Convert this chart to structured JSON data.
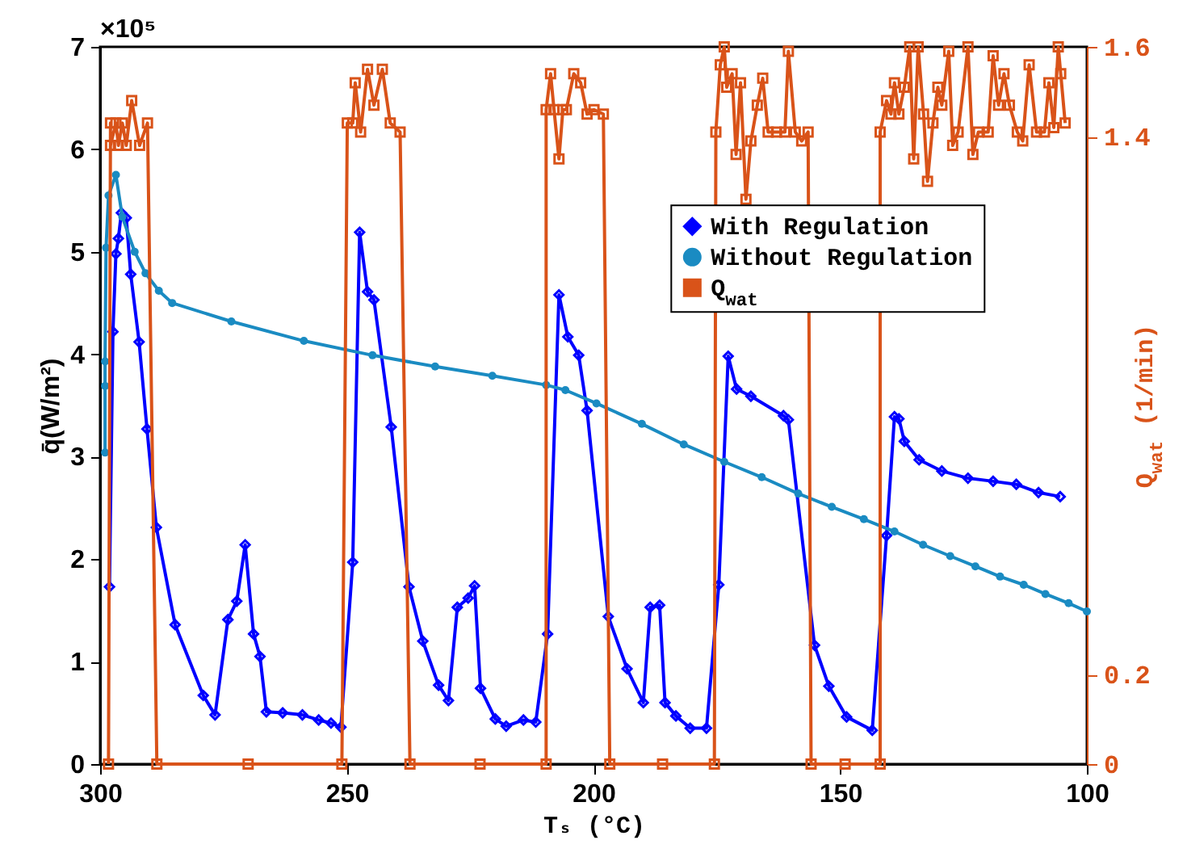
{
  "chart_data": {
    "type": "line",
    "xlabel": "Tₛ (°C)",
    "ylabel": "q̄(W/m²)",
    "y2label": "Q$_{wat}$ (1/min)",
    "annotations": [
      "×10⁵"
    ],
    "xlim": [
      300,
      100
    ],
    "xticks": [
      300,
      250,
      200,
      150,
      100
    ],
    "ylim": [
      0,
      7
    ],
    "yticks": [
      0,
      1,
      2,
      3,
      4,
      5,
      6,
      7
    ],
    "y2lim": [
      0,
      1.6
    ],
    "y2ticks": [
      0,
      0.2,
      1.4,
      1.6
    ],
    "legend": "top right",
    "series": [
      {
        "name": "With Regulation",
        "color": "#0000ff",
        "marker": "diamond",
        "x": [
          298.1,
          297.4,
          296.8,
          296.3,
          295.7,
          294.7,
          293.8,
          292.1,
          290.5,
          288.6,
          284.8,
          279.1,
          276.7,
          274.1,
          272.3,
          270.6,
          268.9,
          267.6,
          266.3,
          263.0,
          259.0,
          255.7,
          253.2,
          251.2,
          248.8,
          247.4,
          245.8,
          244.5,
          241.0,
          237.4,
          234.6,
          231.4,
          229.4,
          227.6,
          225.4,
          224.1,
          222.9,
          219.9,
          217.7,
          214.2,
          211.7,
          209.3,
          207.0,
          205.2,
          203.0,
          201.3,
          197.0,
          193.2,
          189.9,
          188.5,
          186.6,
          185.5,
          183.3,
          180.4,
          177.1,
          174.6,
          172.7,
          171.0,
          168.1,
          161.5,
          160.5,
          155.2,
          152.3,
          148.7,
          143.5,
          140.6,
          139.0,
          138.1,
          137.0,
          134.0,
          129.4,
          124.1,
          119.0,
          114.3,
          109.8,
          105.4
        ],
        "values": [
          1.73,
          4.22,
          4.98,
          5.13,
          5.38,
          5.33,
          4.78,
          4.12,
          3.27,
          2.31,
          1.36,
          0.67,
          0.48,
          1.41,
          1.59,
          2.14,
          1.27,
          1.05,
          0.51,
          0.5,
          0.48,
          0.43,
          0.4,
          0.36,
          1.97,
          5.19,
          4.61,
          4.53,
          3.29,
          1.73,
          1.2,
          0.77,
          0.62,
          1.53,
          1.62,
          1.74,
          0.74,
          0.44,
          0.37,
          0.43,
          0.41,
          1.27,
          4.58,
          4.17,
          3.99,
          3.45,
          1.44,
          0.93,
          0.6,
          1.53,
          1.55,
          0.6,
          0.47,
          0.35,
          0.35,
          1.75,
          3.98,
          3.66,
          3.59,
          3.4,
          3.36,
          1.16,
          0.76,
          0.46,
          0.33,
          2.23,
          3.39,
          3.37,
          3.15,
          2.97,
          2.86,
          2.79,
          2.76,
          2.73,
          2.65,
          2.61
        ]
      },
      {
        "name": "Without Regulation",
        "color": "#1a8bc2",
        "marker": "circle",
        "x": [
          299.0,
          299.0,
          299.0,
          298.8,
          298.3,
          296.8,
          295.5,
          293.0,
          290.8,
          288.1,
          285.4,
          273.4,
          258.7,
          244.8,
          232.1,
          220.5,
          209.6,
          205.7,
          199.4,
          190.2,
          181.7,
          173.5,
          165.9,
          158.5,
          151.7,
          145.2,
          139.0,
          133.2,
          127.7,
          122.6,
          117.6,
          112.8,
          108.4,
          103.7,
          100.0
        ],
        "values": [
          3.04,
          3.69,
          3.93,
          5.04,
          5.55,
          5.75,
          5.34,
          5.0,
          4.79,
          4.62,
          4.5,
          4.32,
          4.13,
          3.99,
          3.88,
          3.79,
          3.7,
          3.65,
          3.52,
          3.32,
          3.12,
          2.95,
          2.8,
          2.64,
          2.51,
          2.39,
          2.27,
          2.14,
          2.03,
          1.93,
          1.83,
          1.75,
          1.66,
          1.57,
          1.49
        ]
      },
      {
        "name": "Q$_{wat}$",
        "color": "#d95319",
        "marker": "square",
        "axis": "y2",
        "x": [
          298.3,
          297.9,
          297.9,
          296.8,
          296.3,
          295.5,
          294.7,
          293.6,
          292.0,
          290.4,
          288.5,
          270,
          251.0,
          249.9,
          248.8,
          248.3,
          247.2,
          245.8,
          244.5,
          242.8,
          241.2,
          239.2,
          237.2,
          223,
          209.6,
          209.6,
          208.7,
          208.0,
          207.0,
          206.2,
          205.5,
          204.0,
          202.6,
          201.3,
          199.9,
          198.0,
          196.7,
          186,
          175.5,
          175.2,
          174.3,
          173.5,
          173.0,
          171.9,
          171.1,
          170.2,
          169.1,
          168.1,
          166.8,
          165.7,
          164.6,
          162.9,
          161.2,
          160.5,
          159.1,
          157.8,
          156.5,
          155.9,
          149,
          141.9,
          141.9,
          140.6,
          139.7,
          139.0,
          138.1,
          137.0,
          135.9,
          135.1,
          134.2,
          133.1,
          132.3,
          131.2,
          130.2,
          129.4,
          128.0,
          127.2,
          126.1,
          124.1,
          123.1,
          122.0,
          120.0,
          119.0,
          117.9,
          116.8,
          115.7,
          114.1,
          113.0,
          111.7,
          110.2,
          108.6,
          107.7,
          106.7,
          105.8,
          105.3,
          104.4
        ],
        "values": [
          0,
          1.43,
          1.38,
          1.43,
          1.38,
          1.43,
          1.38,
          1.48,
          1.38,
          1.43,
          0,
          0,
          0,
          1.43,
          1.43,
          1.52,
          1.41,
          1.55,
          1.47,
          1.55,
          1.43,
          1.41,
          0,
          0,
          0,
          1.46,
          1.54,
          1.46,
          1.35,
          1.46,
          1.46,
          1.54,
          1.52,
          1.45,
          1.46,
          1.45,
          0,
          0,
          0,
          1.41,
          1.56,
          1.6,
          1.51,
          1.54,
          1.36,
          1.52,
          1.26,
          1.39,
          1.47,
          1.53,
          1.41,
          1.41,
          1.41,
          1.59,
          1.41,
          1.39,
          1.41,
          0,
          0,
          0,
          1.41,
          1.48,
          1.45,
          1.52,
          1.45,
          1.51,
          1.6,
          1.35,
          1.6,
          1.45,
          1.3,
          1.43,
          1.51,
          1.47,
          1.59,
          1.38,
          1.41,
          1.6,
          1.36,
          1.41,
          1.41,
          1.58,
          1.47,
          1.54,
          1.47,
          1.41,
          1.39,
          1.56,
          1.41,
          1.41,
          1.52,
          1.42,
          1.6,
          1.54,
          1.43
        ]
      }
    ]
  }
}
